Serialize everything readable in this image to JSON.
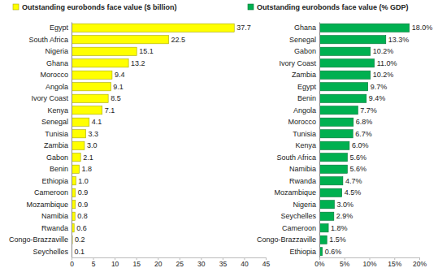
{
  "chart_data": [
    {
      "type": "bar",
      "orientation": "horizontal",
      "categories": [
        "Egypt",
        "South Africa",
        "Nigeria",
        "Ghana",
        "Morocco",
        "Angola",
        "Ivory Coast",
        "Kenya",
        "Senegal",
        "Tunisia",
        "Zambia",
        "Gabon",
        "Benin",
        "Ethiopia",
        "Cameroon",
        "Mozambique",
        "Namibia",
        "Rwanda",
        "Congo-Brazzaville",
        "Seychelles"
      ],
      "series": [
        {
          "name": "Outstanding eurobonds face value ($ billion)",
          "color": "#ffff00",
          "values": [
            37.7,
            22.5,
            15.1,
            13.2,
            9.4,
            9.1,
            8.5,
            7.1,
            4.1,
            3.3,
            3.0,
            2.1,
            1.8,
            1.0,
            0.9,
            0.9,
            0.8,
            0.6,
            0.2,
            0.1
          ],
          "value_labels": [
            "37.7",
            "22.5",
            "15.1",
            "13.2",
            "9.4",
            "9.1",
            "8.5",
            "7.1",
            "4.1",
            "3.3",
            "3.0",
            "2.1",
            "1.8",
            "1.0",
            "0.9",
            "0.9",
            "0.8",
            "0.6",
            "0.2",
            "0.1"
          ]
        }
      ],
      "xlim": [
        0,
        45
      ],
      "xticks": [
        0,
        5,
        10,
        15,
        20,
        25,
        30,
        35,
        40,
        45
      ],
      "data_labels": true,
      "legend": "top",
      "grid": false
    },
    {
      "type": "bar",
      "orientation": "horizontal",
      "categories": [
        "Ghana",
        "Senegal",
        "Gabon",
        "Ivory Coast",
        "Zambia",
        "Egypt",
        "Benin",
        "Angola",
        "Morocco",
        "Tunisia",
        "Kenya",
        "South Africa",
        "Namibia",
        "Rwanda",
        "Mozambique",
        "Nigeria",
        "Seychelles",
        "Cameroon",
        "Congo-Brazzaville",
        "Ethiopia"
      ],
      "series": [
        {
          "name": "Outstanding eurobonds face value (% GDP)",
          "color": "#00b050",
          "values": [
            18.0,
            13.3,
            10.2,
            11.0,
            10.2,
            9.7,
            9.4,
            7.7,
            6.8,
            6.7,
            6.0,
            5.6,
            5.6,
            4.7,
            4.5,
            3.0,
            2.9,
            1.8,
            1.5,
            0.6
          ],
          "value_labels": [
            "18.0%",
            "13.3%",
            "10.2%",
            "11.0%",
            "10.2%",
            "9.7%",
            "9.4%",
            "7.7%",
            "6.8%",
            "6.7%",
            "6.0%",
            "5.6%",
            "5.6%",
            "4.7%",
            "4.5%",
            "3.0%",
            "2.9%",
            "1.8%",
            "1.5%",
            "0.6%"
          ]
        }
      ],
      "xlim": [
        0,
        20
      ],
      "xticks": [
        {
          "value": 0,
          "label": "0%"
        },
        {
          "value": 5,
          "label": "5%"
        },
        {
          "value": 10,
          "label": "10%"
        },
        {
          "value": 15,
          "label": "15%"
        },
        {
          "value": 20,
          "label": "20%"
        }
      ],
      "data_labels": true,
      "legend": "top",
      "grid": false
    }
  ]
}
